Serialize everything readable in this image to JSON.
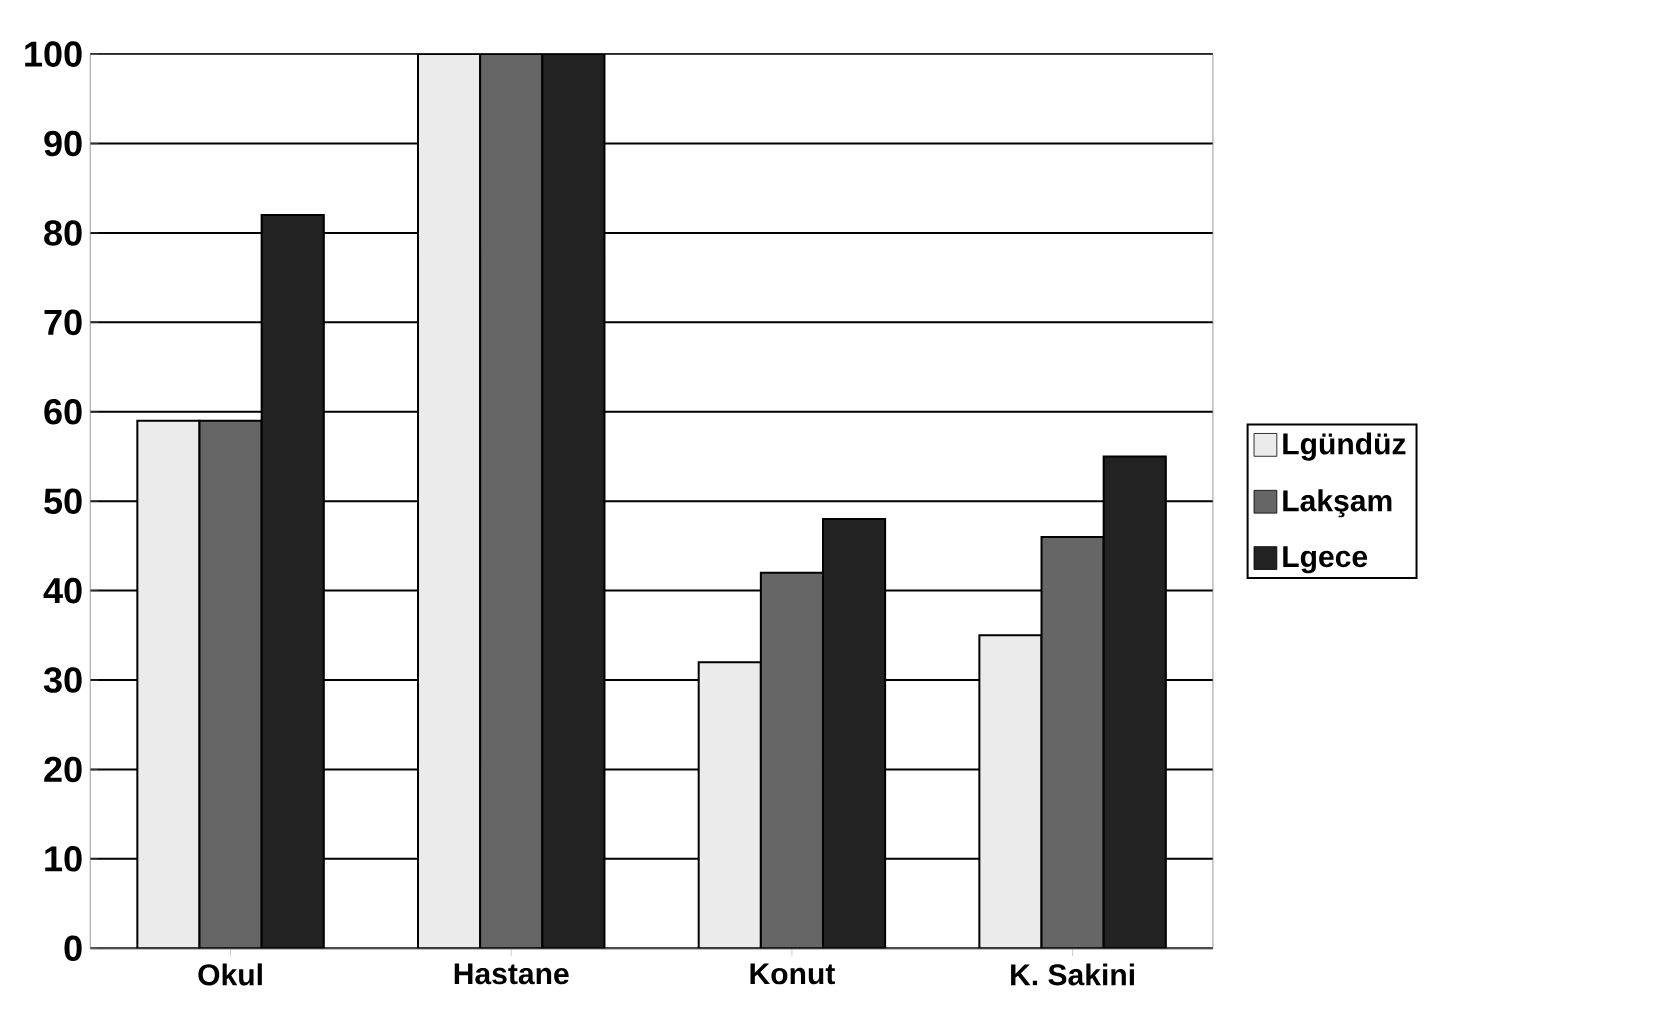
{
  "chart_data": {
    "type": "bar",
    "categories": [
      "Okul",
      "Hastane",
      "Konut",
      "K. Sakini"
    ],
    "series": [
      {
        "name": "Lgündüz",
        "color": "#ebebeb",
        "values": [
          59,
          100,
          32,
          35
        ]
      },
      {
        "name": "Lakşam",
        "color": "#666666",
        "values": [
          59,
          100,
          42,
          46
        ]
      },
      {
        "name": "Lgece",
        "color": "#222222",
        "values": [
          82,
          100,
          48,
          55
        ]
      }
    ],
    "ylim": [
      0,
      100
    ],
    "yticks": [
      0,
      10,
      20,
      30,
      40,
      50,
      60,
      70,
      80,
      90,
      100
    ],
    "grid": "y",
    "legend": "right"
  }
}
